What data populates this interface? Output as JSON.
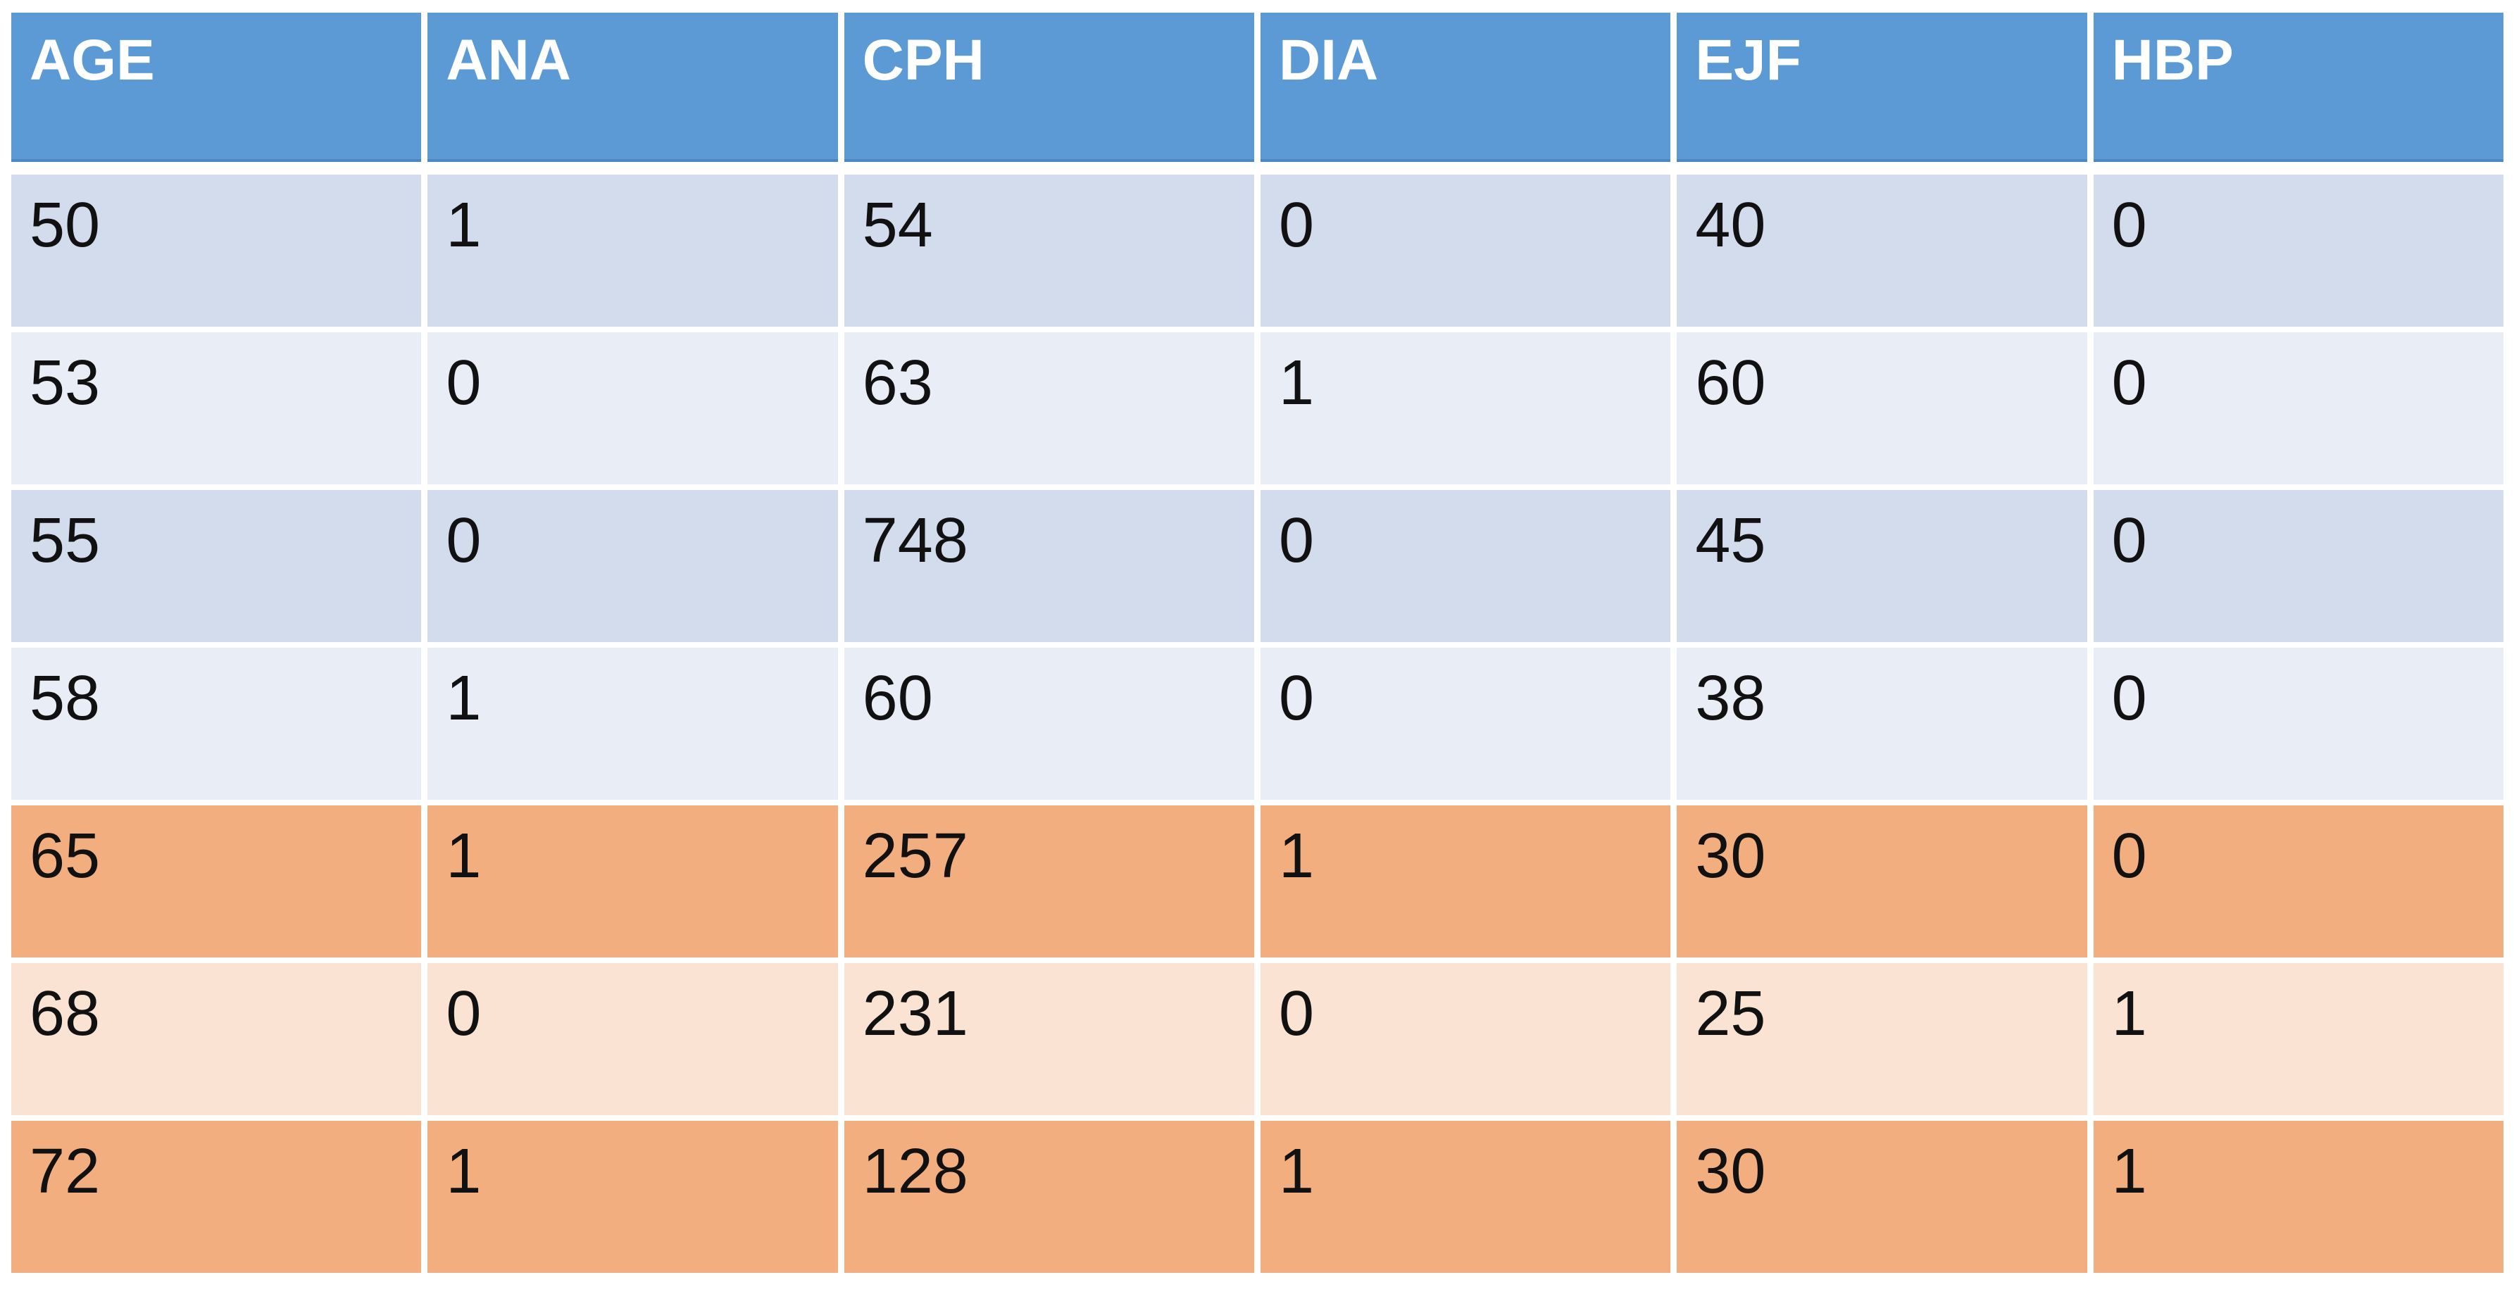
{
  "chart_data": {
    "type": "table",
    "columns": [
      "AGE",
      "ANA",
      "CPH",
      "DIA",
      "EJF",
      "HBP"
    ],
    "rows": [
      [
        50,
        1,
        54,
        0,
        40,
        0
      ],
      [
        53,
        0,
        63,
        1,
        60,
        0
      ],
      [
        55,
        0,
        748,
        0,
        45,
        0
      ],
      [
        58,
        1,
        60,
        0,
        38,
        0
      ],
      [
        65,
        1,
        257,
        1,
        30,
        0
      ],
      [
        68,
        0,
        231,
        0,
        25,
        1
      ],
      [
        72,
        1,
        128,
        1,
        30,
        1
      ]
    ]
  },
  "table": {
    "header": {
      "labels": [
        "AGE",
        "ANA",
        "CPH",
        "DIA",
        "EJF",
        "HBP"
      ]
    },
    "rows": [
      {
        "cells": [
          "50",
          "1",
          "54",
          "0",
          "40",
          "0"
        ]
      },
      {
        "cells": [
          "53",
          "0",
          "63",
          "1",
          "60",
          "0"
        ]
      },
      {
        "cells": [
          "55",
          "0",
          "748",
          "0",
          "45",
          "0"
        ]
      },
      {
        "cells": [
          "58",
          "1",
          "60",
          "0",
          "38",
          "0"
        ]
      },
      {
        "cells": [
          "65",
          "1",
          "257",
          "1",
          "30",
          "0"
        ]
      },
      {
        "cells": [
          "68",
          "0",
          "231",
          "0",
          "25",
          "1"
        ]
      },
      {
        "cells": [
          "72",
          "1",
          "128",
          "1",
          "30",
          "1"
        ]
      }
    ],
    "colors": {
      "header_bg": "#5b9ad5",
      "header_edge": "#4d88c4",
      "header_text": "#ffffff",
      "band_blue_dark": "#d2dcec",
      "band_blue_light": "#e9edf6",
      "band_orange_dark": "#f3ae80",
      "band_orange_light": "#fbe3d3",
      "cell_text": "#111111",
      "page_bg": "#ffffff"
    }
  }
}
